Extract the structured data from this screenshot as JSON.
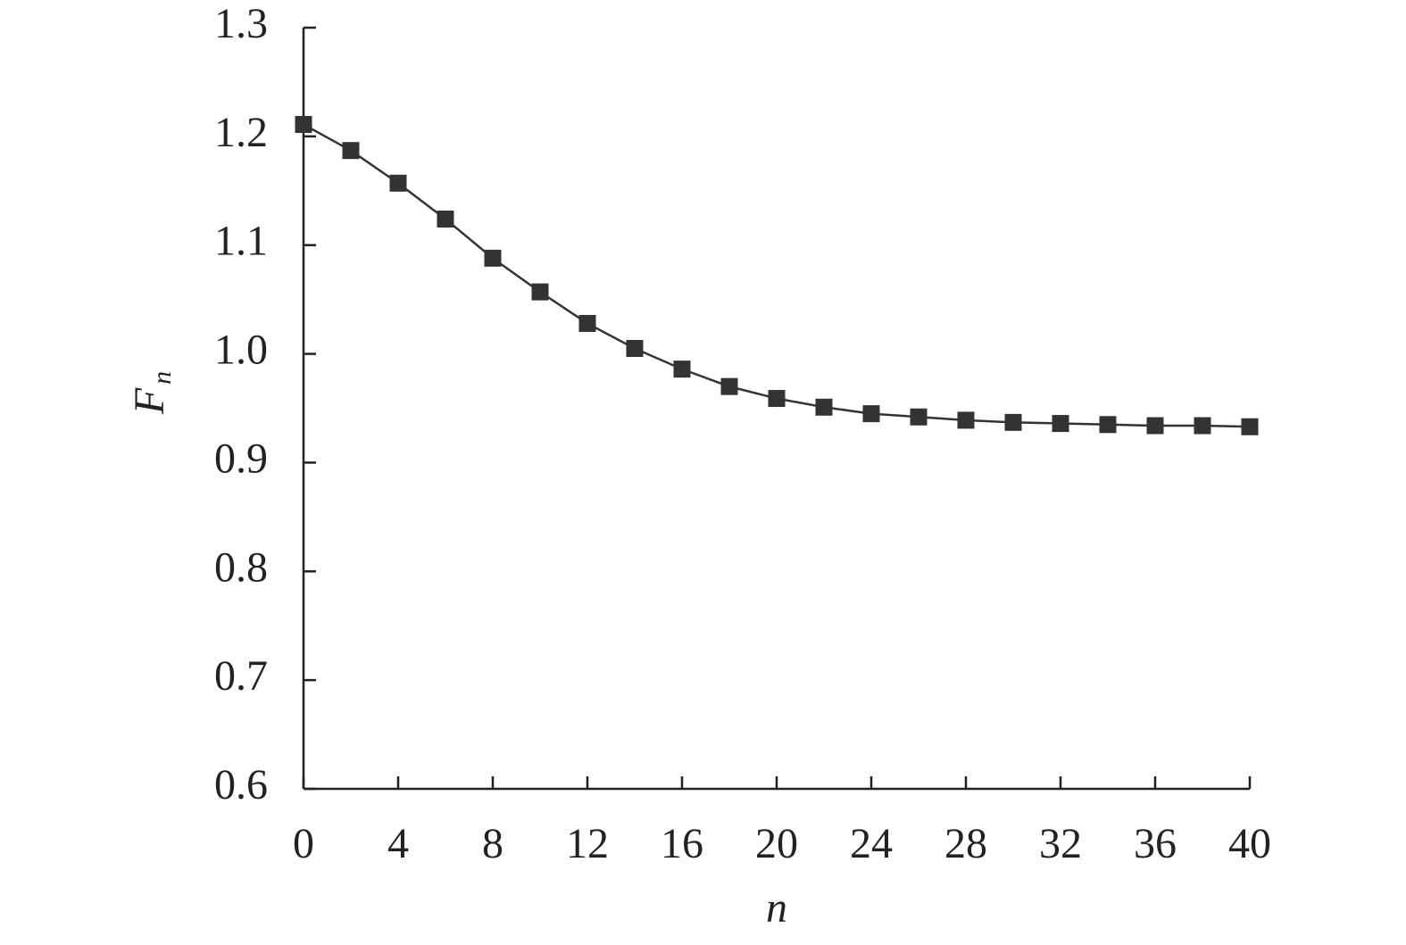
{
  "chart_data": {
    "type": "line",
    "x_label": "n",
    "y_label": "Fn",
    "x": [
      0,
      2,
      4,
      6,
      8,
      10,
      12,
      14,
      16,
      18,
      20,
      22,
      24,
      26,
      28,
      30,
      32,
      34,
      36,
      38,
      40
    ],
    "values": [
      1.211,
      1.187,
      1.157,
      1.124,
      1.088,
      1.057,
      1.028,
      1.005,
      0.986,
      0.97,
      0.959,
      0.951,
      0.945,
      0.942,
      0.939,
      0.937,
      0.936,
      0.935,
      0.934,
      0.934,
      0.933
    ],
    "color": "#333333",
    "marker": "square",
    "xlim": [
      0,
      40
    ],
    "xticks": [
      0,
      4,
      8,
      12,
      16,
      20,
      24,
      28,
      32,
      36,
      40
    ],
    "ylim": [
      0.6,
      1.3
    ],
    "yticks": [
      0.6,
      0.7,
      0.8,
      0.9,
      {
        "value": 1,
        "label": "1.0"
      },
      1.1,
      1.2,
      1.3
    ],
    "grid": false
  }
}
